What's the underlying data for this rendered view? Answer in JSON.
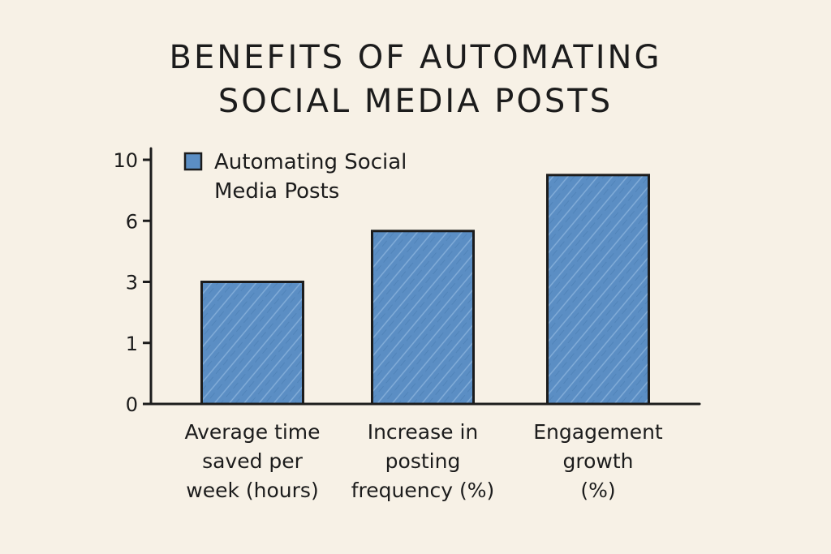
{
  "title_lines": [
    "Benefits of Automating",
    "Social Media Posts"
  ],
  "colors": {
    "bar": "#5b8ec4",
    "outline": "#1c1c1c",
    "background": "#f7f1e6"
  },
  "chart_data": {
    "type": "bar",
    "title": "Benefits of Automating Social Media Posts",
    "categories": [
      [
        "Average time",
        "saved per",
        "week (hours)"
      ],
      [
        "Increase in",
        "posting",
        "frequency (%)"
      ],
      [
        "Engagement",
        "growth",
        "(%)"
      ]
    ],
    "y_ticks": [
      "0",
      "1",
      "3",
      "6",
      "10"
    ],
    "series": [
      {
        "name": "Automating Social Media Posts",
        "name_lines": [
          "Automating Social",
          "Media Posts"
        ],
        "values": [
          3,
          5.5,
          9
        ]
      }
    ],
    "y_scale": "categorical ticks 0,1,3,6,10 equally spaced",
    "legend_position": "top-left",
    "grid": false
  }
}
